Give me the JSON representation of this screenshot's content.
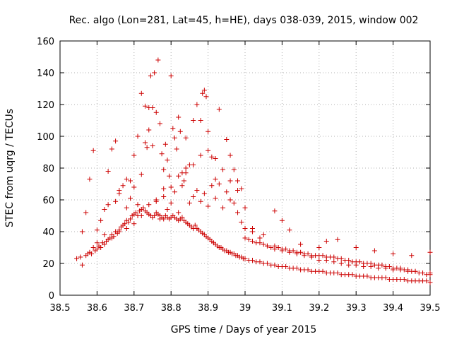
{
  "chart_data": {
    "type": "scatter",
    "title": "Rec. algo (Lon=281, Lat=45, h=HE), days 038-039, 2015, window 002",
    "xlabel": "GPS time / Days of year 2015",
    "ylabel": "STEC from uqrg / TECUs",
    "xlim": [
      38.5,
      39.5
    ],
    "ylim": [
      0,
      160
    ],
    "xticks": [
      "38.5",
      "38.6",
      "38.7",
      "38.8",
      "38.9",
      "39",
      "39.1",
      "39.2",
      "39.3",
      "39.4",
      "39.5"
    ],
    "yticks": [
      "0",
      "20",
      "40",
      "60",
      "80",
      "100",
      "120",
      "140",
      "160"
    ],
    "grid": true,
    "marker": "plus",
    "color": "#cc0000",
    "series": [
      {
        "x": [
          38.545,
          38.555,
          38.56,
          38.57,
          38.575,
          38.58,
          38.585,
          38.59,
          38.595,
          38.6,
          38.605,
          38.61,
          38.615,
          38.62,
          38.625,
          38.63,
          38.635,
          38.64,
          38.645,
          38.65,
          38.655,
          38.66,
          38.665,
          38.67,
          38.675,
          38.68,
          38.685,
          38.69,
          38.695,
          38.7,
          38.705,
          38.71,
          38.715,
          38.72,
          38.725,
          38.73,
          38.735,
          38.74,
          38.745,
          38.75,
          38.755,
          38.76,
          38.765,
          38.77,
          38.775,
          38.78,
          38.785,
          38.79,
          38.795,
          38.8,
          38.805,
          38.81,
          38.815,
          38.82,
          38.825,
          38.83,
          38.835,
          38.84,
          38.845,
          38.85,
          38.855,
          38.86,
          38.865,
          38.87,
          38.875,
          38.88,
          38.885,
          38.89,
          38.895,
          38.9,
          38.905,
          38.91,
          38.915,
          38.92,
          38.925,
          38.93,
          38.935,
          38.94,
          38.945,
          38.95,
          38.955,
          38.96,
          38.965,
          38.97,
          38.975,
          38.98,
          38.985,
          38.99,
          38.995,
          39.0,
          39.01,
          39.02,
          39.03,
          39.04,
          39.05,
          39.06,
          39.07,
          39.08,
          39.09,
          39.1,
          39.11,
          39.12,
          39.13,
          39.14,
          39.15,
          39.16,
          39.17,
          39.18,
          39.19,
          39.2,
          39.21,
          39.22,
          39.23,
          39.24,
          39.25,
          39.26,
          39.27,
          39.28,
          39.29,
          39.3,
          39.31,
          39.32,
          39.33,
          39.34,
          39.35,
          39.36,
          39.37,
          39.38,
          39.39,
          39.4,
          39.41,
          39.42,
          39.43,
          39.44,
          39.45,
          39.46,
          39.47,
          39.48,
          39.49,
          39.5
        ],
        "y": [
          23,
          24,
          19,
          25,
          26,
          27,
          26,
          30,
          28,
          29,
          31,
          30,
          33,
          32,
          34,
          35,
          36,
          38,
          37,
          40,
          39,
          41,
          43,
          44,
          45,
          47,
          46,
          48,
          50,
          51,
          52,
          50,
          53,
          54,
          55,
          53,
          52,
          51,
          50,
          49,
          50,
          52,
          51,
          50,
          49,
          48,
          50,
          49,
          48,
          49,
          50,
          49,
          48,
          47,
          48,
          49,
          47,
          46,
          45,
          44,
          43,
          42,
          44,
          42,
          41,
          40,
          39,
          38,
          37,
          36,
          35,
          34,
          33,
          32,
          31,
          30,
          30,
          29,
          28,
          28,
          27,
          27,
          26,
          26,
          25,
          25,
          24,
          24,
          23,
          23,
          22,
          22,
          21,
          21,
          20,
          20,
          19,
          19,
          18,
          18,
          18,
          17,
          17,
          17,
          16,
          16,
          16,
          15,
          15,
          15,
          15,
          14,
          14,
          14,
          14,
          13,
          13,
          13,
          13,
          12,
          12,
          12,
          12,
          11,
          11,
          11,
          11,
          11,
          10,
          10,
          10,
          10,
          10,
          9,
          9,
          9,
          9,
          9,
          9,
          8
        ]
      },
      {
        "x": [
          38.56,
          38.57,
          38.58,
          38.59,
          38.6,
          38.61,
          38.62,
          38.63,
          38.64,
          38.65,
          38.66,
          38.67,
          38.68,
          38.69,
          38.7,
          38.71,
          38.72,
          38.73,
          38.74,
          38.75,
          38.76,
          38.77,
          38.78,
          38.79,
          38.8,
          38.81,
          38.82,
          38.83,
          38.84,
          38.85,
          38.86,
          38.87,
          38.88,
          38.89,
          38.9,
          38.91,
          38.92,
          38.93,
          38.94,
          38.95,
          38.96,
          38.97,
          38.98,
          38.99,
          39.0,
          39.01,
          39.02,
          39.03,
          39.04,
          39.05,
          39.06,
          39.07,
          39.08,
          39.09,
          39.1,
          39.11,
          39.12,
          39.13,
          39.14,
          39.15,
          39.16,
          39.17,
          39.18,
          39.19,
          39.2,
          39.21,
          39.22,
          39.23,
          39.24,
          39.25,
          39.26,
          39.27,
          39.28,
          39.29,
          39.3,
          39.31,
          39.32,
          39.33,
          39.34,
          39.35,
          39.36,
          39.37,
          39.38,
          39.39,
          39.4,
          39.41,
          39.42,
          39.43,
          39.44,
          39.45,
          39.46,
          39.47,
          39.48,
          39.49,
          39.5
        ],
        "y": [
          40,
          52,
          73,
          91,
          41,
          47,
          54,
          78,
          92,
          97,
          64,
          69,
          55,
          61,
          68,
          57,
          76,
          119,
          118,
          94,
          59,
          48,
          62,
          54,
          58,
          65,
          52,
          69,
          80,
          58,
          62,
          66,
          59,
          64,
          56,
          69,
          61,
          70,
          55,
          65,
          60,
          58,
          52,
          46,
          36,
          35,
          34,
          33,
          33,
          32,
          31,
          30,
          31,
          30,
          29,
          29,
          28,
          28,
          27,
          27,
          26,
          26,
          25,
          25,
          25,
          25,
          24,
          24,
          24,
          23,
          23,
          22,
          22,
          21,
          21,
          21,
          20,
          20,
          20,
          19,
          19,
          19,
          18,
          18,
          17,
          17,
          17,
          16,
          16,
          15,
          15,
          14,
          14,
          13,
          13
        ]
      },
      {
        "x": [
          38.6,
          38.62,
          38.63,
          38.65,
          38.66,
          38.68,
          38.69,
          38.7,
          38.71,
          38.72,
          38.73,
          38.735,
          38.74,
          38.745,
          38.75,
          38.755,
          38.76,
          38.765,
          38.77,
          38.775,
          38.78,
          38.785,
          38.79,
          38.795,
          38.8,
          38.805,
          38.81,
          38.815,
          38.82,
          38.825,
          38.83,
          38.835,
          38.84,
          38.85,
          38.86,
          38.87,
          38.88,
          38.885,
          38.89,
          38.895,
          38.9,
          38.91,
          38.92,
          38.93,
          38.95,
          38.96,
          38.97,
          38.98,
          38.99,
          39.0,
          39.02,
          39.05,
          39.08,
          39.1,
          39.12,
          39.15,
          39.2,
          39.22,
          39.25,
          39.3,
          39.35,
          39.4,
          39.45,
          39.5
        ],
        "y": [
          33,
          38,
          57,
          59,
          66,
          73,
          72,
          88,
          100,
          127,
          96,
          93,
          104,
          138,
          118,
          140,
          115,
          148,
          108,
          89,
          79,
          95,
          85,
          75,
          138,
          105,
          99,
          92,
          112,
          103,
          77,
          72,
          99,
          82,
          110,
          120,
          110,
          127,
          129,
          125,
          103,
          87,
          73,
          117,
          98,
          88,
          79,
          72,
          67,
          55,
          42,
          38,
          53,
          47,
          41,
          32,
          30,
          34,
          35,
          30,
          28,
          26,
          25,
          27
        ]
      },
      {
        "x": [
          38.64,
          38.66,
          38.68,
          38.7,
          38.72,
          38.74,
          38.76,
          38.78,
          38.8,
          38.82,
          38.84,
          38.86,
          38.88,
          38.9,
          38.92,
          38.94,
          38.96,
          38.98,
          39.0,
          39.02,
          39.04,
          39.06,
          39.08,
          39.1,
          39.12,
          39.14,
          39.16,
          39.18,
          39.2,
          39.22,
          39.24,
          39.26,
          39.28,
          39.3,
          39.32,
          39.34,
          39.36,
          39.38,
          39.4,
          39.42,
          39.44,
          39.46,
          39.48,
          39.5
        ],
        "y": [
          36,
          40,
          42,
          45,
          50,
          57,
          60,
          67,
          68,
          75,
          77,
          82,
          88,
          91,
          86,
          79,
          72,
          66,
          42,
          40,
          36,
          31,
          29,
          28,
          27,
          26,
          25,
          24,
          22,
          22,
          21,
          20,
          19,
          19,
          18,
          18,
          17,
          17,
          16,
          16,
          15,
          15,
          14,
          14
        ]
      }
    ]
  }
}
